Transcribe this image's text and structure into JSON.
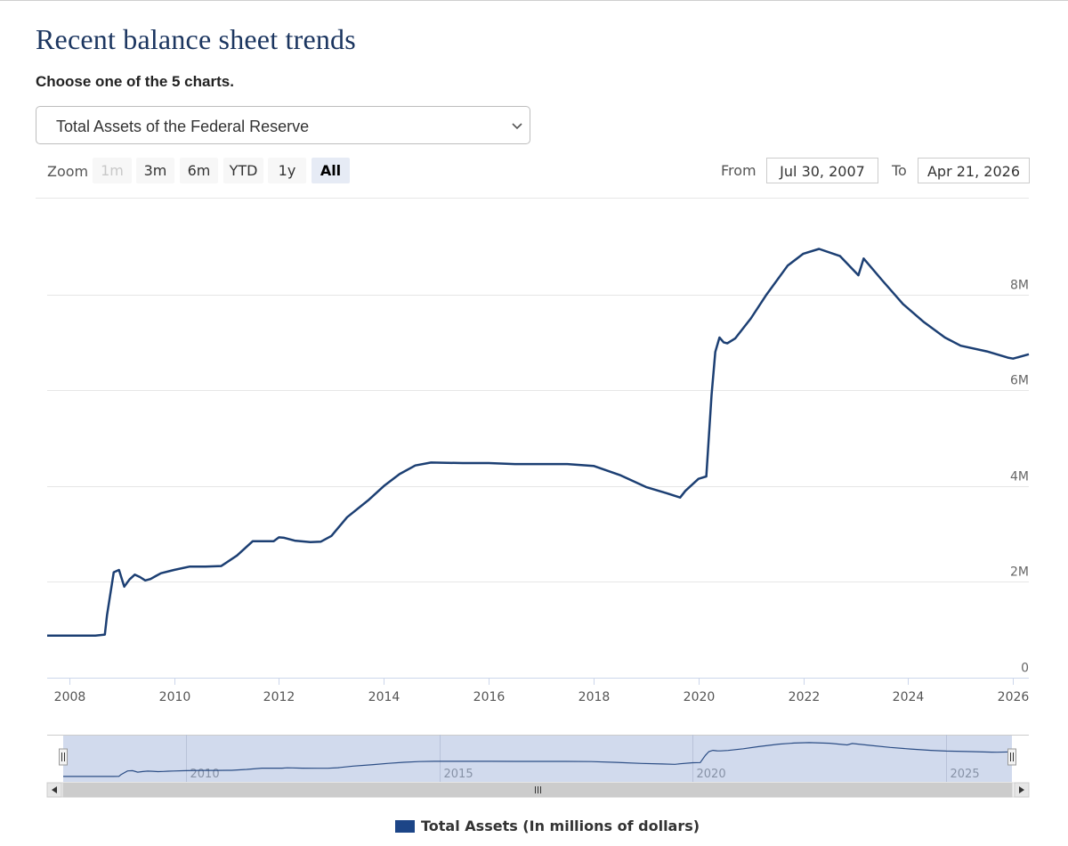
{
  "page": {
    "title": "Recent balance sheet trends",
    "subtitle": "Choose one of the 5 charts."
  },
  "selector": {
    "selected": "Total Assets of the Federal Reserve"
  },
  "zoom": {
    "label": "Zoom",
    "buttons": [
      {
        "label": "1m",
        "state": "disabled"
      },
      {
        "label": "3m",
        "state": "normal"
      },
      {
        "label": "6m",
        "state": "normal"
      },
      {
        "label": "YTD",
        "state": "normal"
      },
      {
        "label": "1y",
        "state": "normal"
      },
      {
        "label": "All",
        "state": "active"
      }
    ]
  },
  "range": {
    "from_label": "From",
    "from_value": "Jul 30, 2007",
    "to_label": "To",
    "to_value": "Apr 21, 2026"
  },
  "colors": {
    "line": "#1c3f73",
    "title": "#1c3660",
    "navigator_fill": "#ccd6eb",
    "legend": "#1c4587"
  },
  "chart_data": {
    "type": "line",
    "title": "",
    "xlabel": "",
    "ylabel": "",
    "xlim": [
      2007.58,
      2026.3
    ],
    "ylim": [
      0,
      10000000
    ],
    "y_ticks": [
      0,
      2000000,
      4000000,
      6000000,
      8000000
    ],
    "y_tick_labels": [
      "0",
      "2M",
      "4M",
      "6M",
      "8M"
    ],
    "x_ticks": [
      2008,
      2010,
      2012,
      2014,
      2016,
      2018,
      2020,
      2022,
      2024,
      2026
    ],
    "x_tick_labels": [
      "2008",
      "2010",
      "2012",
      "2014",
      "2016",
      "2018",
      "2020",
      "2022",
      "2024",
      "2026"
    ],
    "navigator_ticks": [
      2010,
      2015,
      2020,
      2025
    ],
    "navigator_tick_labels": [
      "2010",
      "2015",
      "2020",
      "2025"
    ],
    "legend_position": "bottom-center",
    "series": [
      {
        "name": "Total Assets (In millions of dollars)",
        "x": [
          2007.58,
          2008.0,
          2008.5,
          2008.68,
          2008.72,
          2008.85,
          2008.95,
          2009.05,
          2009.15,
          2009.25,
          2009.35,
          2009.45,
          2009.55,
          2009.65,
          2009.75,
          2010.0,
          2010.3,
          2010.6,
          2010.9,
          2011.2,
          2011.5,
          2011.9,
          2012.0,
          2012.1,
          2012.3,
          2012.6,
          2012.8,
          2013.0,
          2013.3,
          2013.7,
          2014.0,
          2014.3,
          2014.6,
          2014.9,
          2015.5,
          2016.0,
          2016.5,
          2017.0,
          2017.5,
          2018.0,
          2018.5,
          2019.0,
          2019.4,
          2019.65,
          2019.75,
          2020.0,
          2020.15,
          2020.25,
          2020.32,
          2020.4,
          2020.48,
          2020.55,
          2020.7,
          2021.0,
          2021.3,
          2021.7,
          2022.0,
          2022.3,
          2022.7,
          2023.05,
          2023.15,
          2023.5,
          2023.9,
          2024.3,
          2024.7,
          2025.0,
          2025.5,
          2025.9,
          2026.0,
          2026.3
        ],
        "values": [
          880000,
          880000,
          880000,
          900000,
          1300000,
          2200000,
          2250000,
          1900000,
          2050000,
          2150000,
          2100000,
          2030000,
          2060000,
          2120000,
          2180000,
          2250000,
          2320000,
          2320000,
          2330000,
          2550000,
          2850000,
          2850000,
          2930000,
          2920000,
          2860000,
          2830000,
          2840000,
          2960000,
          3350000,
          3700000,
          4000000,
          4250000,
          4430000,
          4490000,
          4480000,
          4480000,
          4460000,
          4460000,
          4460000,
          4420000,
          4230000,
          3980000,
          3850000,
          3760000,
          3900000,
          4150000,
          4200000,
          5900000,
          6800000,
          7100000,
          7000000,
          6980000,
          7080000,
          7500000,
          8000000,
          8600000,
          8850000,
          8950000,
          8800000,
          8400000,
          8750000,
          8300000,
          7800000,
          7420000,
          7100000,
          6930000,
          6810000,
          6680000,
          6660000,
          6750000
        ]
      }
    ]
  }
}
